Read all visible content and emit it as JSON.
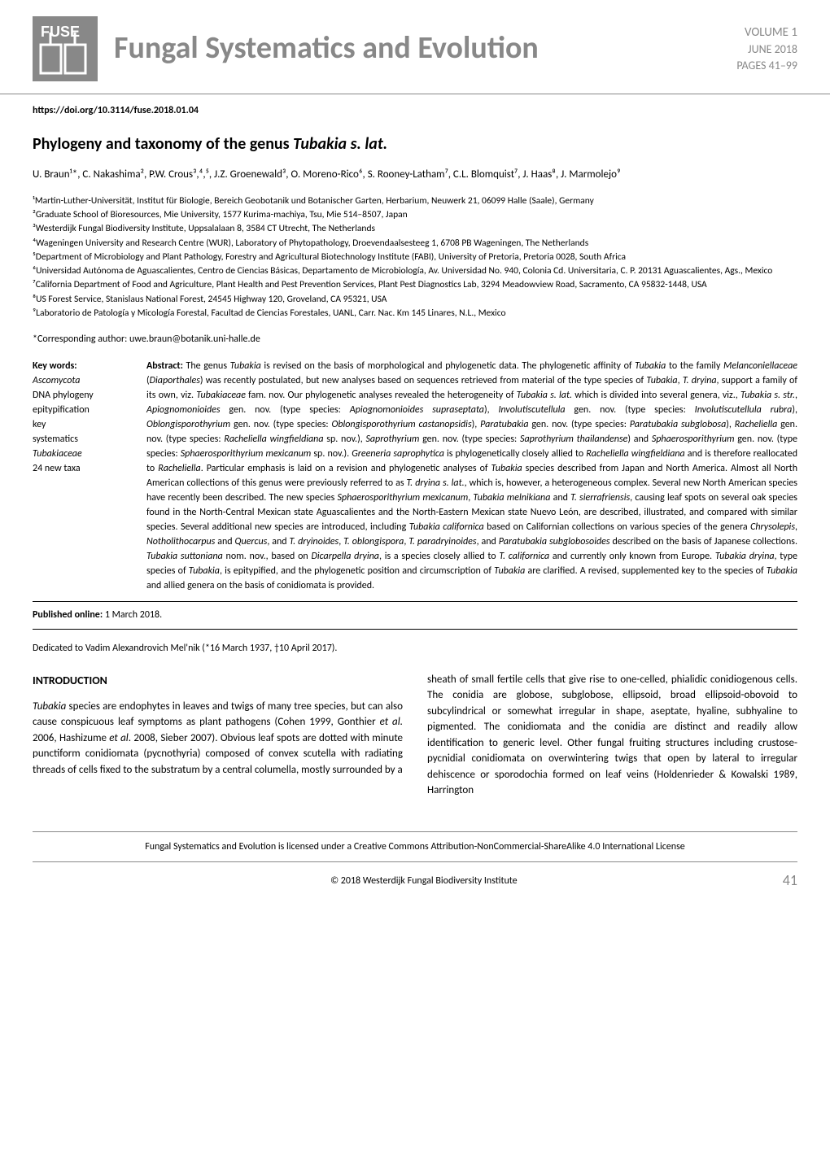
{
  "header": {
    "journal_title": "Fungal Systematics and Evolution",
    "volume_label": "VOLUME 1",
    "date": "JUNE 2018",
    "pages": "PAGES 41–99",
    "logo_text": "FUSE",
    "logo_bg": "#888888",
    "logo_fg": "#ffffff"
  },
  "doi": "https://doi.org/10.3114/fuse.2018.01.04",
  "title": {
    "main": "Phylogeny and taxonomy of the genus ",
    "italic": "Tubakia s. lat."
  },
  "authors": "U. Braun¹*, C. Nakashima², P.W. Crous³,⁴,⁵, J.Z. Groenewald³, O. Moreno-Rico⁶, S. Rooney-Latham⁷, C.L. Blomquist⁷, J. Haas⁸, J. Marmolejo⁹",
  "affiliations": [
    "¹Martin-Luther-Universität, Institut für Biologie, Bereich Geobotanik und Botanischer Garten, Herbarium, Neuwerk 21, 06099 Halle (Saale), Germany",
    "²Graduate School of Bioresources, Mie University, 1577 Kurima-machiya, Tsu, Mie 514–8507, Japan",
    "³Westerdijk Fungal Biodiversity Institute, Uppsalalaan 8, 3584 CT Utrecht, The Netherlands",
    "⁴Wageningen University and Research Centre (WUR), Laboratory of Phytopathology, Droevendaalsesteeg 1, 6708 PB Wageningen, The Netherlands",
    "⁵Department of Microbiology and Plant Pathology, Forestry and Agricultural Biotechnology Institute (FABI), University of Pretoria, Pretoria 0028, South Africa",
    "⁶Universidad Autónoma de Aguascalientes, Centro de Ciencias Básicas, Departamento de Microbiología, Av. Universidad No. 940, Colonia Cd. Universitaria, C. P. 20131 Aguascalientes, Ags., Mexico",
    "⁷California Department of Food and Agriculture, Plant Health and Pest Prevention Services, Plant Pest Diagnostics Lab, 3294 Meadowview Road, Sacramento, CA 95832-1448, USA",
    "⁸US Forest Service, Stanislaus National Forest, 24545 Highway 120, Groveland, CA 95321, USA",
    "⁹Laboratorio de Patología y Micología Forestal, Facultad de Ciencias Forestales, UANL, Carr. Nac. Km 145 Linares, N.L., Mexico"
  ],
  "corresponding": "*Corresponding author: uwe.braun@botanik.uni-halle.de",
  "keywords": {
    "header": "Key words:",
    "items": [
      {
        "text": "Ascomycota",
        "italic": true
      },
      {
        "text": "DNA phylogeny",
        "italic": false
      },
      {
        "text": "epitypification",
        "italic": false
      },
      {
        "text": "key",
        "italic": false
      },
      {
        "text": "systematics",
        "italic": false
      },
      {
        "text": "Tubakiaceae",
        "italic": true
      },
      {
        "text": "24 new taxa",
        "italic": false
      }
    ]
  },
  "abstract": {
    "label": "Abstract:",
    "text": " The genus <i>Tubakia</i> is revised on the basis of morphological and phylogenetic data. The phylogenetic affinity of <i>Tubakia</i> to the family <i>Melanconiellaceae</i> (<i>Diaporthales</i>) was recently postulated, but new analyses based on sequences retrieved from material of the type species of <i>Tubakia</i>, <i>T. dryina</i>, support a family of its own, viz. <i>Tubakiaceae</i> fam. nov. Our phylogenetic analyses revealed the heterogeneity of <i>Tubakia s. lat.</i> which is divided into several genera, viz., <i>Tubakia s. str.</i>, <i>Apiognomonioides</i> gen. nov. (type species: <i>Apiognomonioides supraseptata</i>), <i>Involutiscutellula</i> gen. nov. (type species: <i>Involutiscutellula rubra</i>), <i>Oblongisporothyrium</i> gen. nov. (type species: <i>Oblongisporothyrium castanopsidis</i>), <i>Paratubakia</i> gen. nov. (type species: <i>Paratubakia subglobosa</i>), <i>Racheliella</i> gen. nov. (type species: <i>Racheliella wingfieldiana</i> sp. nov.), <i>Saprothyrium</i> gen. nov. (type species: <i>Saprothyrium thailandense</i>) and <i>Sphaerosporithyrium</i> gen. nov. (type species: <i>Sphaerosporithyrium mexicanum</i> sp. nov.). <i>Greeneria saprophytica</i> is phylogenetically closely allied to <i>Racheliella wingfieldiana</i> and is therefore reallocated to <i>Racheliella</i>. Particular emphasis is laid on a revision and phylogenetic analyses of <i>Tubakia</i> species described from Japan and North America. Almost all North American collections of this genus were previously referred to as <i>T. dryina s. lat.</i>, which is, however, a heterogeneous complex. Several new North American species have recently been described. The new species <i>Sphaerosporithyrium mexicanum</i>, <i>Tubakia melnikiana</i> and <i>T. sierrafriensis</i>, causing leaf spots on several oak species found in the North-Central Mexican state Aguascalientes and the North-Eastern Mexican state Nuevo León, are described, illustrated, and compared with similar species. Several additional new species are introduced, including <i>Tubakia californica</i> based on Californian collections on various species of the genera <i>Chrysolepis</i>, <i>Notholithocarpus</i> and <i>Quercus</i>, and <i>T. dryinoides</i>, <i>T. oblongispora</i>, <i>T. paradryinoides</i>, and <i>Paratubakia subglobosoides</i> described on the basis of Japanese collections. <i>Tubakia suttoniana</i> nom. nov., based on <i>Dicarpella dryina</i>, is a species closely allied to <i>T. californica</i> and currently only known from Europe. <i>Tubakia dryina</i>, type species of <i>Tubakia</i>, is epitypified, and the phylogenetic position and circumscription of <i>Tubakia</i> are clarified. A revised, supplemented key to the species of <i>Tubakia</i> and allied genera on the basis of conidiomata is provided."
  },
  "published": {
    "label": "Published online:",
    "date": " 1 March 2018."
  },
  "dedication": "Dedicated to Vadim Alexandrovich Mel'nik (*16 March 1937, †10 April 2017).",
  "introduction": {
    "heading": "INTRODUCTION",
    "col1": "<i>Tubakia</i> species are endophytes in leaves and twigs of many tree species, but can also cause conspicuous leaf symptoms as plant pathogens (Cohen 1999, Gonthier <i>et al.</i> 2006, Hashizume <i>et al</i>. 2008, Sieber 2007). Obvious leaf spots are dotted with minute punctiform conidiomata (pycnothyria) composed of convex scutella with radiating threads of cells fixed to the substratum by a central columella, mostly surrounded by a",
    "col2": "sheath of small fertile cells that give rise to one-celled, phialidic conidiogenous cells. The conidia are globose, subglobose, ellipsoid, broad ellipsoid-obovoid to subcylindrical or somewhat irregular in shape, aseptate, hyaline, subhyaline to pigmented. The conidiomata and the conidia are distinct and readily allow identification to generic level. Other fungal fruiting structures including crustose-pycnidial conidiomata on overwintering twigs that open by lateral to irregular dehiscence or sporodochia formed on leaf veins (Holdenrieder & Kowalski 1989, Harrington"
  },
  "license": "Fungal Systematics and Evolution is licensed under a Creative Commons Attribution-NonCommercial-ShareAlike 4.0 International License",
  "footer": {
    "copyright": "© 2018 Westerdijk Fungal Biodiversity Institute",
    "page": "41"
  }
}
